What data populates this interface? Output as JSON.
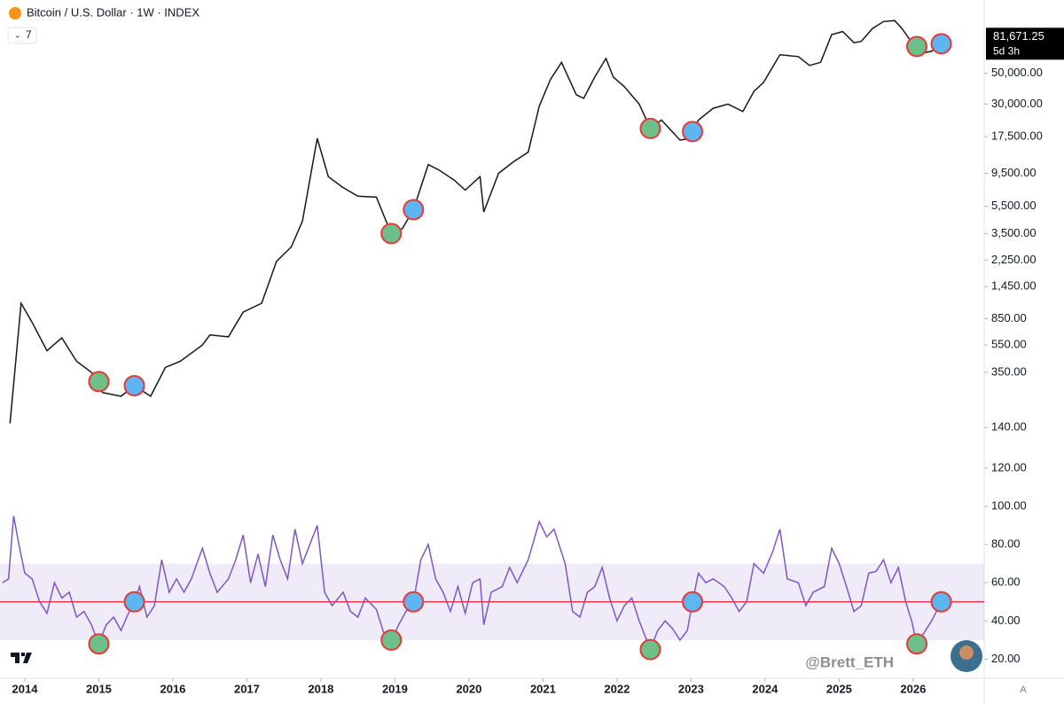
{
  "chart_data": [
    {
      "type": "line",
      "title": "Bitcoin / U.S. Dollar · 1W · INDEX",
      "indicators_label": "7",
      "color": "#131722",
      "log_scale": true,
      "xlim": [
        2013.665,
        2026.96
      ],
      "ylim": [
        100,
        150000
      ],
      "yticks": [
        {
          "value": 50000,
          "label": "50,000.00"
        },
        {
          "value": 30000,
          "label": "30,000.00"
        },
        {
          "value": 17500,
          "label": "17,500.00"
        },
        {
          "value": 9500,
          "label": "9,500.00"
        },
        {
          "value": 5500,
          "label": "5,500.00"
        },
        {
          "value": 3500,
          "label": "3,500.00"
        },
        {
          "value": 2250,
          "label": "2,250.00"
        },
        {
          "value": 1450,
          "label": "1,450.00"
        },
        {
          "value": 850,
          "label": "850.00"
        },
        {
          "value": 550,
          "label": "550.00"
        },
        {
          "value": 350,
          "label": "350.00"
        },
        {
          "value": 140,
          "label": "140.00"
        }
      ],
      "last_price_label": "81,671.25",
      "countdown": "5d 3h",
      "x": [
        2013.8,
        2013.95,
        2014.1,
        2014.3,
        2014.5,
        2014.7,
        2014.9,
        2015.0,
        2015.05,
        2015.3,
        2015.48,
        2015.7,
        2015.9,
        2016.1,
        2016.4,
        2016.5,
        2016.75,
        2016.95,
        2017.2,
        2017.4,
        2017.6,
        2017.75,
        2017.95,
        2018.1,
        2018.3,
        2018.5,
        2018.75,
        2018.95,
        2019.1,
        2019.25,
        2019.45,
        2019.6,
        2019.8,
        2019.95,
        2020.15,
        2020.2,
        2020.4,
        2020.6,
        2020.8,
        2020.95,
        2021.1,
        2021.25,
        2021.45,
        2021.55,
        2021.7,
        2021.85,
        2021.95,
        2022.1,
        2022.3,
        2022.45,
        2022.6,
        2022.85,
        2022.95,
        2023.02,
        2023.1,
        2023.3,
        2023.5,
        2023.7,
        2023.85,
        2023.98,
        2024.2,
        2024.45,
        2024.6,
        2024.75,
        2024.9,
        2025.05,
        2025.2,
        2025.3,
        2025.45,
        2025.6,
        2025.75,
        2025.85,
        2025.95,
        2026.05,
        2026.12,
        2026.25,
        2026.38
      ],
      "values": [
        150,
        1100,
        800,
        500,
        620,
        420,
        350,
        300,
        250,
        235,
        280,
        235,
        380,
        420,
        550,
        650,
        630,
        950,
        1100,
        2200,
        2800,
        4300,
        17000,
        9000,
        7500,
        6500,
        6400,
        3500,
        3800,
        5200,
        11000,
        10000,
        8500,
        7200,
        9000,
        5000,
        9500,
        11500,
        13500,
        29000,
        45000,
        60000,
        35000,
        33000,
        47000,
        64000,
        47000,
        40000,
        30000,
        20000,
        23000,
        16500,
        16800,
        19000,
        23000,
        28000,
        30000,
        26500,
        37000,
        43000,
        68000,
        66000,
        57000,
        60000,
        95000,
        100000,
        83000,
        85000,
        105000,
        118000,
        120000,
        105000,
        88000,
        78000,
        70000,
        72000,
        81671.25
      ],
      "markers": {
        "bottoms": {
          "color": "#6fbf8b",
          "x": [
            2015.0,
            2018.95,
            2022.45,
            2026.05
          ]
        },
        "breakouts": {
          "color": "#5fb4f2",
          "x": [
            2015.48,
            2019.25,
            2023.02,
            2026.38
          ]
        }
      }
    },
    {
      "type": "line",
      "color": "#7e57c2",
      "xlim": [
        2013.665,
        2026.96
      ],
      "ylim": [
        10,
        126
      ],
      "yticks": [
        {
          "value": 120,
          "label": "120.00"
        },
        {
          "value": 100,
          "label": "100.00"
        },
        {
          "value": 80,
          "label": "80.00"
        },
        {
          "value": 60,
          "label": "60.00"
        },
        {
          "value": 40,
          "label": "40.00"
        },
        {
          "value": 20,
          "label": "20.00"
        }
      ],
      "band": [
        30,
        70
      ],
      "level": 50,
      "level_color": "#f23645",
      "xticks": [
        2014,
        2015,
        2016,
        2017,
        2018,
        2019,
        2020,
        2021,
        2022,
        2023,
        2024,
        2025,
        2026
      ],
      "x": [
        2013.7,
        2013.78,
        2013.85,
        2013.92,
        2014.0,
        2014.1,
        2014.2,
        2014.3,
        2014.4,
        2014.5,
        2014.6,
        2014.7,
        2014.8,
        2014.9,
        2015.0,
        2015.1,
        2015.2,
        2015.3,
        2015.4,
        2015.48,
        2015.55,
        2015.65,
        2015.75,
        2015.85,
        2015.95,
        2016.05,
        2016.15,
        2016.25,
        2016.4,
        2016.5,
        2016.6,
        2016.75,
        2016.85,
        2016.95,
        2017.05,
        2017.15,
        2017.25,
        2017.35,
        2017.45,
        2017.55,
        2017.65,
        2017.75,
        2017.85,
        2017.95,
        2018.05,
        2018.15,
        2018.3,
        2018.4,
        2018.5,
        2018.6,
        2018.75,
        2018.88,
        2018.95,
        2019.05,
        2019.15,
        2019.25,
        2019.35,
        2019.45,
        2019.55,
        2019.65,
        2019.75,
        2019.85,
        2019.95,
        2020.05,
        2020.15,
        2020.2,
        2020.3,
        2020.45,
        2020.55,
        2020.65,
        2020.8,
        2020.95,
        2021.05,
        2021.15,
        2021.3,
        2021.4,
        2021.5,
        2021.6,
        2021.7,
        2021.8,
        2021.9,
        2022.0,
        2022.1,
        2022.2,
        2022.3,
        2022.45,
        2022.55,
        2022.65,
        2022.75,
        2022.85,
        2022.95,
        2023.02,
        2023.1,
        2023.2,
        2023.3,
        2023.45,
        2023.55,
        2023.65,
        2023.75,
        2023.85,
        2023.98,
        2024.1,
        2024.2,
        2024.3,
        2024.45,
        2024.55,
        2024.65,
        2024.8,
        2024.9,
        2025.0,
        2025.1,
        2025.2,
        2025.3,
        2025.4,
        2025.5,
        2025.6,
        2025.7,
        2025.8,
        2025.9,
        2025.98,
        2026.05,
        2026.15,
        2026.25,
        2026.38
      ],
      "values": [
        60,
        62,
        95,
        80,
        65,
        62,
        50,
        44,
        60,
        52,
        55,
        42,
        45,
        38,
        28,
        38,
        42,
        35,
        44,
        50,
        58,
        42,
        48,
        72,
        55,
        62,
        55,
        62,
        78,
        65,
        55,
        62,
        72,
        85,
        60,
        75,
        58,
        85,
        72,
        62,
        88,
        70,
        80,
        90,
        55,
        48,
        55,
        45,
        42,
        52,
        46,
        30,
        30,
        38,
        45,
        50,
        72,
        80,
        62,
        55,
        45,
        58,
        44,
        60,
        62,
        38,
        55,
        58,
        68,
        60,
        72,
        92,
        84,
        88,
        70,
        45,
        42,
        55,
        58,
        68,
        52,
        40,
        48,
        52,
        40,
        25,
        35,
        40,
        36,
        30,
        35,
        50,
        65,
        60,
        62,
        58,
        52,
        45,
        50,
        70,
        65,
        76,
        88,
        62,
        60,
        48,
        55,
        58,
        78,
        70,
        58,
        45,
        48,
        65,
        66,
        72,
        60,
        68,
        50,
        40,
        28,
        34,
        40,
        50
      ],
      "markers": {
        "bottoms": {
          "color": "#6fbf8b",
          "x": [
            2015.0,
            2018.95,
            2022.45,
            2026.05
          ]
        },
        "breakouts": {
          "color": "#5fb4f2",
          "x": [
            2015.48,
            2019.25,
            2023.02,
            2026.38
          ]
        }
      }
    }
  ],
  "watermark": "@Brett_ETH",
  "scale_button": "A"
}
